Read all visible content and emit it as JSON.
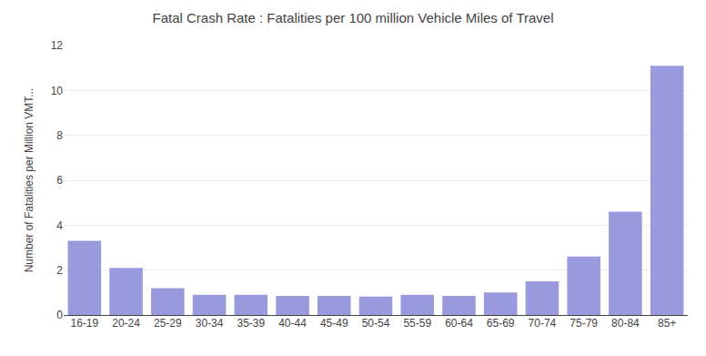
{
  "chart_data": {
    "type": "bar",
    "title": "Fatal Crash Rate : Fatalities per 100 million Vehicle Miles of Travel",
    "ylabel": "Number of Fatalities per Million VMT...",
    "categories": [
      "16-19",
      "20-24",
      "25-29",
      "30-34",
      "35-39",
      "40-44",
      "45-49",
      "50-54",
      "55-59",
      "60-64",
      "65-69",
      "70-74",
      "75-79",
      "80-84",
      "85+"
    ],
    "values": [
      3.3,
      2.1,
      1.2,
      0.9,
      0.9,
      0.85,
      0.85,
      0.82,
      0.9,
      0.85,
      1.0,
      1.5,
      2.6,
      4.6,
      11.1
    ],
    "color": "#9999dd",
    "ylim": [
      0,
      12
    ],
    "yticks": [
      0,
      2,
      4,
      6,
      8,
      10,
      12
    ],
    "grid": true
  }
}
